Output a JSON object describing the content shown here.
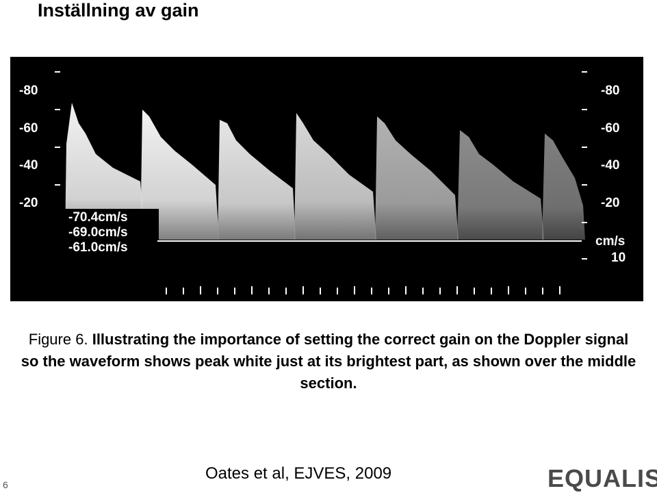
{
  "header": {
    "title": "Inställning av gain"
  },
  "image": {
    "left_scale": [
      "-80",
      "-60",
      "-40",
      "-20"
    ],
    "right_scale": [
      "-80",
      "-60",
      "-40",
      "-20"
    ],
    "right_unit": "cm/s",
    "right_value": "10",
    "measurements": [
      "-70.4cm/s",
      "-69.0cm/s",
      "-61.0cm/s"
    ]
  },
  "caption": {
    "label": "Figure 6.",
    "text": "Illustrating the importance of setting the correct gain on the Doppler signal so the waveform shows peak white just at its brightest part, as shown over the middle section."
  },
  "citation": "Oates et al, EJVES, 2009",
  "footer": {
    "page": "6",
    "logo": "EQUALIS"
  }
}
